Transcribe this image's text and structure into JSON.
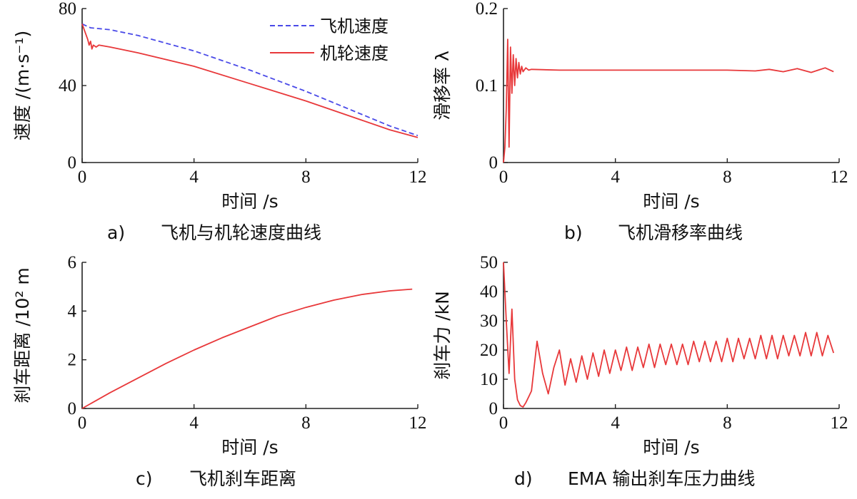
{
  "charts": [
    {
      "id": "a",
      "type": "line",
      "caption_tag": "a)",
      "caption": "飞机与机轮速度曲线",
      "xlabel": "时间 /s",
      "ylabel": "速度 /(m·s⁻¹)",
      "xlim": [
        0,
        12
      ],
      "ylim": [
        0,
        80
      ],
      "xticks": [
        0,
        4,
        8,
        12
      ],
      "yticks": [
        0,
        40,
        80
      ],
      "legend": [
        "飞机速度",
        "机轮速度"
      ],
      "series": [
        {
          "name": "飞机速度",
          "color": "#4a4ae8",
          "dash": true,
          "x": [
            0,
            0.3,
            1,
            2,
            4,
            6,
            8,
            10,
            11,
            12
          ],
          "y": [
            72,
            70,
            69,
            66,
            58,
            48,
            37,
            25,
            19,
            14
          ]
        },
        {
          "name": "机轮速度",
          "color": "#e8383a",
          "dash": false,
          "x": [
            0,
            0.1,
            0.2,
            0.25,
            0.3,
            0.35,
            0.4,
            0.5,
            0.6,
            1,
            2,
            4,
            6,
            8,
            10,
            11,
            12
          ],
          "y": [
            72,
            68,
            64,
            61,
            63,
            59,
            61,
            60,
            61,
            60,
            57,
            50,
            41,
            32,
            22,
            17,
            13
          ]
        }
      ]
    },
    {
      "id": "b",
      "type": "line",
      "caption_tag": "b)",
      "caption": "飞机滑移率曲线",
      "xlabel": "时间 /s",
      "ylabel": "滑移率 λ",
      "xlim": [
        0,
        12
      ],
      "ylim": [
        0,
        0.2
      ],
      "xticks": [
        0,
        4,
        8,
        12
      ],
      "yticks": [
        0,
        0.1,
        0.2
      ],
      "series": [
        {
          "name": "滑移率",
          "color": "#e8383a",
          "dash": false,
          "x": [
            0,
            0.05,
            0.1,
            0.15,
            0.2,
            0.25,
            0.3,
            0.35,
            0.4,
            0.45,
            0.5,
            0.55,
            0.6,
            0.65,
            0.7,
            0.8,
            0.9,
            1.0,
            2,
            4,
            6,
            8,
            9,
            9.5,
            10,
            10.5,
            11,
            11.5,
            11.8
          ],
          "y": [
            0,
            0.02,
            0.07,
            0.16,
            0.02,
            0.15,
            0.09,
            0.14,
            0.1,
            0.135,
            0.11,
            0.13,
            0.115,
            0.125,
            0.118,
            0.123,
            0.12,
            0.121,
            0.12,
            0.12,
            0.12,
            0.12,
            0.119,
            0.121,
            0.118,
            0.122,
            0.117,
            0.123,
            0.118
          ]
        }
      ]
    },
    {
      "id": "c",
      "type": "line",
      "caption_tag": "c)",
      "caption": "飞机刹车距离",
      "xlabel": "时间 /s",
      "ylabel": "刹车距离 /10² m",
      "xlim": [
        0,
        12
      ],
      "ylim": [
        0,
        6
      ],
      "xticks": [
        0,
        4,
        8,
        12
      ],
      "yticks": [
        0,
        2,
        4,
        6
      ],
      "series": [
        {
          "name": "刹车距离",
          "color": "#e8383a",
          "dash": false,
          "x": [
            0,
            1,
            2,
            3,
            4,
            5,
            6,
            7,
            8,
            9,
            10,
            11,
            11.8
          ],
          "y": [
            0,
            0.65,
            1.25,
            1.85,
            2.4,
            2.9,
            3.35,
            3.8,
            4.15,
            4.45,
            4.68,
            4.83,
            4.9
          ]
        }
      ]
    },
    {
      "id": "d",
      "type": "line",
      "caption_tag": "d)",
      "caption": "EMA 输出刹车压力曲线",
      "xlabel": "时间 /s",
      "ylabel": "刹车力 /kN",
      "xlim": [
        0,
        12
      ],
      "ylim": [
        0,
        50
      ],
      "xticks": [
        0,
        4,
        8,
        12
      ],
      "yticks": [
        0,
        10,
        20,
        30,
        40,
        50
      ],
      "series": [
        {
          "name": "刹车力",
          "color": "#e8383a",
          "dash": false,
          "x": [
            0,
            0.1,
            0.2,
            0.3,
            0.4,
            0.5,
            0.6,
            0.7,
            0.8,
            0.9,
            1.0,
            1.2,
            1.4,
            1.6,
            1.8,
            2.0,
            2.2,
            2.4,
            2.6,
            2.8,
            3.0,
            3.2,
            3.4,
            3.6,
            3.8,
            4.0,
            4.2,
            4.4,
            4.6,
            4.8,
            5.0,
            5.2,
            5.4,
            5.6,
            5.8,
            6.0,
            6.2,
            6.4,
            6.6,
            6.8,
            7.0,
            7.2,
            7.4,
            7.6,
            7.8,
            8.0,
            8.2,
            8.4,
            8.6,
            8.8,
            9.0,
            9.2,
            9.4,
            9.6,
            9.8,
            10.0,
            10.2,
            10.4,
            10.6,
            10.8,
            11.0,
            11.2,
            11.4,
            11.6,
            11.8
          ],
          "y": [
            50,
            30,
            12,
            34,
            10,
            3,
            1,
            0.5,
            2,
            4,
            6,
            23,
            12,
            5,
            14,
            20,
            8,
            17,
            9,
            18,
            10,
            19,
            11,
            20,
            12,
            20,
            13,
            21,
            13,
            21,
            14,
            22,
            14,
            22,
            15,
            22,
            15,
            22,
            15,
            23,
            16,
            23,
            16,
            23,
            16,
            24,
            16,
            24,
            17,
            24,
            17,
            25,
            17,
            25,
            17,
            25,
            18,
            25,
            18,
            26,
            18,
            26,
            18,
            25,
            19
          ]
        }
      ]
    }
  ]
}
